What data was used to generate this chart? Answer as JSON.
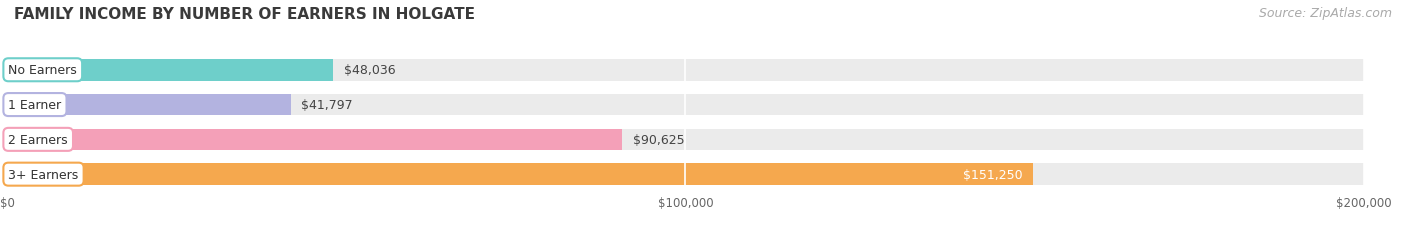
{
  "title": "FAMILY INCOME BY NUMBER OF EARNERS IN HOLGATE",
  "source": "Source: ZipAtlas.com",
  "categories": [
    "No Earners",
    "1 Earner",
    "2 Earners",
    "3+ Earners"
  ],
  "values": [
    48036,
    41797,
    90625,
    151250
  ],
  "bar_colors": [
    "#6ecfca",
    "#b3b3e0",
    "#f4a0b8",
    "#f5a84e"
  ],
  "value_labels": [
    "$48,036",
    "$41,797",
    "$90,625",
    "$151,250"
  ],
  "value_inside": [
    false,
    false,
    false,
    true
  ],
  "xlim": [
    0,
    200000
  ],
  "xtick_labels": [
    "$0",
    "$100,000",
    "$200,000"
  ],
  "bg_color": "#ffffff",
  "bar_bg_color": "#ebebeb",
  "title_fontsize": 11,
  "source_fontsize": 9,
  "label_fontsize": 9,
  "value_fontsize": 9,
  "bar_height": 0.62,
  "fig_width": 14.06,
  "fig_height": 2.32
}
